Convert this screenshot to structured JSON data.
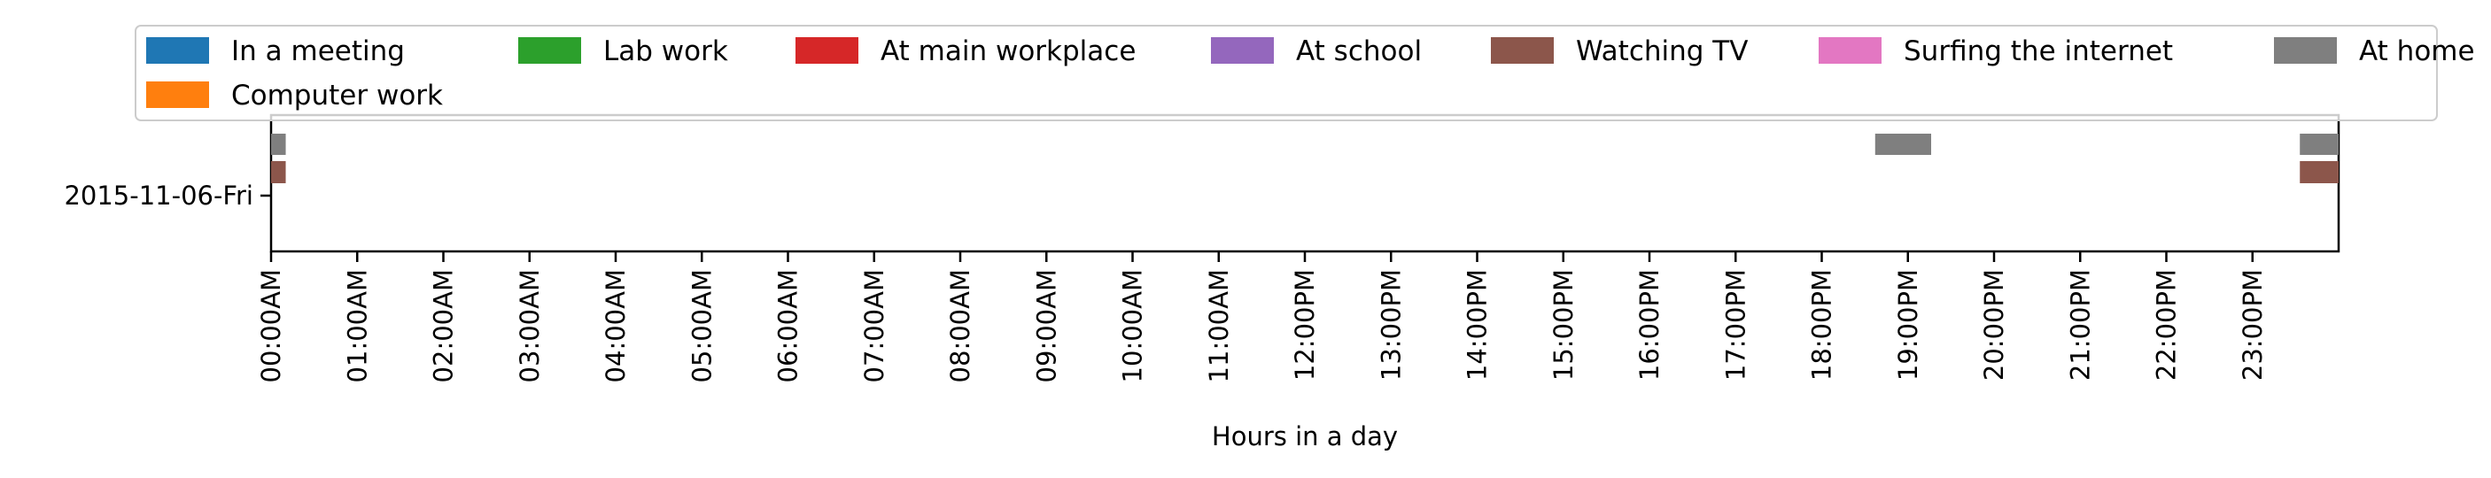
{
  "chart_data": {
    "type": "gantt",
    "title": "",
    "xlabel": "Hours in a day",
    "ylabel": "",
    "x_unit": "hours",
    "xlim": [
      0,
      24
    ],
    "categories": [
      "2015-11-06-Fri"
    ],
    "x_ticks": [
      {
        "value": 0,
        "label": "00:00AM"
      },
      {
        "value": 1,
        "label": "01:00AM"
      },
      {
        "value": 2,
        "label": "02:00AM"
      },
      {
        "value": 3,
        "label": "03:00AM"
      },
      {
        "value": 4,
        "label": "04:00AM"
      },
      {
        "value": 5,
        "label": "05:00AM"
      },
      {
        "value": 6,
        "label": "06:00AM"
      },
      {
        "value": 7,
        "label": "07:00AM"
      },
      {
        "value": 8,
        "label": "08:00AM"
      },
      {
        "value": 9,
        "label": "09:00AM"
      },
      {
        "value": 10,
        "label": "10:00AM"
      },
      {
        "value": 11,
        "label": "11:00AM"
      },
      {
        "value": 12,
        "label": "12:00PM"
      },
      {
        "value": 13,
        "label": "13:00PM"
      },
      {
        "value": 14,
        "label": "14:00PM"
      },
      {
        "value": 15,
        "label": "15:00PM"
      },
      {
        "value": 16,
        "label": "16:00PM"
      },
      {
        "value": 17,
        "label": "17:00PM"
      },
      {
        "value": 18,
        "label": "18:00PM"
      },
      {
        "value": 19,
        "label": "19:00PM"
      },
      {
        "value": 20,
        "label": "20:00PM"
      },
      {
        "value": 21,
        "label": "21:00PM"
      },
      {
        "value": 22,
        "label": "22:00PM"
      },
      {
        "value": 23,
        "label": "23:00PM"
      }
    ],
    "legend": {
      "placement": "top",
      "items": [
        {
          "name": "In a meeting",
          "color": "#1f77b4"
        },
        {
          "name": "Computer work",
          "color": "#ff7f0e"
        },
        {
          "name": "Lab work",
          "color": "#2ca02c"
        },
        {
          "name": "At main workplace",
          "color": "#d62728"
        },
        {
          "name": "At school",
          "color": "#9467bd"
        },
        {
          "name": "Watching TV",
          "color": "#8c564b"
        },
        {
          "name": "Surfing the internet",
          "color": "#e377c2"
        },
        {
          "name": "At home",
          "color": "#7f7f7f"
        }
      ]
    },
    "series": [
      {
        "name": "At home",
        "color": "#7f7f7f",
        "day": "2015-11-06-Fri",
        "segments": [
          {
            "start": 0.0,
            "end": 0.17
          },
          {
            "start": 18.62,
            "end": 19.27
          },
          {
            "start": 23.55,
            "end": 24.0
          }
        ]
      },
      {
        "name": "Watching TV",
        "color": "#8c564b",
        "day": "2015-11-06-Fri",
        "segments": [
          {
            "start": 0.0,
            "end": 0.17
          },
          {
            "start": 23.55,
            "end": 24.0
          }
        ]
      }
    ]
  }
}
